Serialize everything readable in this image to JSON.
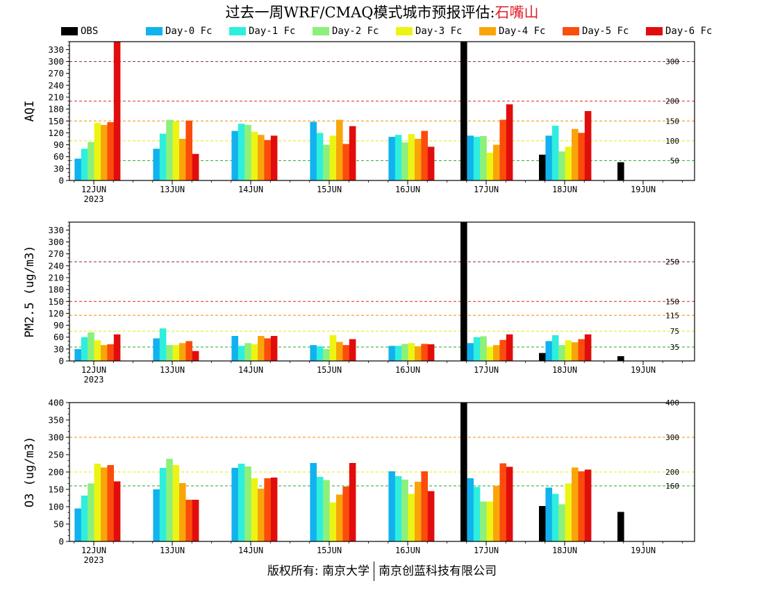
{
  "header": {
    "title": "过去一周WRF/CMAQ模式城市预报评估:",
    "station": "石嘴山"
  },
  "legend": [
    {
      "label": "OBS",
      "color": "#000000"
    },
    {
      "label": "Day-0 Fc",
      "color": "#11b2ee"
    },
    {
      "label": "Day-1 Fc",
      "color": "#2eeede"
    },
    {
      "label": "Day-2 Fc",
      "color": "#8cf07a"
    },
    {
      "label": "Day-3 Fc",
      "color": "#ecf414"
    },
    {
      "label": "Day-4 Fc",
      "color": "#f9a50a"
    },
    {
      "label": "Day-5 Fc",
      "color": "#fb4c0c"
    },
    {
      "label": "Day-6 Fc",
      "color": "#e10d0d"
    }
  ],
  "footer": {
    "left": "版权所有: 南京大学",
    "right": "南京创蓝科技有限公司"
  },
  "chart_data": [
    {
      "type": "bar",
      "ylabel": "AQI",
      "categories": [
        "12JUN",
        "13JUN",
        "14JUN",
        "15JUN",
        "16JUN",
        "17JUN",
        "18JUN",
        "19JUN"
      ],
      "first_category_sublabel": "2023",
      "ylim": [
        0,
        350
      ],
      "yticks": [
        0,
        30,
        60,
        90,
        120,
        150,
        180,
        210,
        240,
        270,
        300,
        330
      ],
      "thresholds": [
        {
          "value": 50,
          "label": "50",
          "color": "#22aa22"
        },
        {
          "value": 100,
          "label": "100",
          "color": "#e8e800"
        },
        {
          "value": 150,
          "label": "150",
          "color": "#f08c00"
        },
        {
          "value": 200,
          "label": "200",
          "color": "#dd2222"
        },
        {
          "value": 300,
          "label": "300",
          "color": "#882255"
        }
      ],
      "series": [
        {
          "name": "OBS",
          "values": [
            null,
            null,
            null,
            null,
            null,
            350,
            65,
            46
          ]
        },
        {
          "name": "Day-0 Fc",
          "values": [
            55,
            80,
            125,
            148,
            110,
            113,
            113,
            null
          ]
        },
        {
          "name": "Day-1 Fc",
          "values": [
            80,
            118,
            143,
            120,
            115,
            110,
            138,
            null
          ]
        },
        {
          "name": "Day-2 Fc",
          "values": [
            97,
            153,
            140,
            90,
            96,
            112,
            73,
            null
          ]
        },
        {
          "name": "Day-3 Fc",
          "values": [
            145,
            149,
            123,
            113,
            117,
            70,
            85,
            null
          ]
        },
        {
          "name": "Day-4 Fc",
          "values": [
            140,
            105,
            115,
            153,
            105,
            90,
            130,
            null
          ]
        },
        {
          "name": "Day-5 Fc",
          "values": [
            147,
            151,
            102,
            92,
            125,
            153,
            120,
            null
          ]
        },
        {
          "name": "Day-6 Fc",
          "values": [
            350,
            67,
            113,
            137,
            85,
            192,
            175,
            null
          ]
        }
      ]
    },
    {
      "type": "bar",
      "ylabel": "PM2.5 (ug/m3)",
      "categories": [
        "12JUN",
        "13JUN",
        "14JUN",
        "15JUN",
        "16JUN",
        "17JUN",
        "18JUN",
        "19JUN"
      ],
      "first_category_sublabel": "2023",
      "ylim": [
        0,
        350
      ],
      "yticks": [
        0,
        30,
        60,
        90,
        120,
        150,
        180,
        210,
        240,
        270,
        300,
        330
      ],
      "thresholds": [
        {
          "value": 35,
          "label": "35",
          "color": "#22aa22"
        },
        {
          "value": 75,
          "label": "75",
          "color": "#e8e800"
        },
        {
          "value": 115,
          "label": "115",
          "color": "#f08c00"
        },
        {
          "value": 150,
          "label": "150",
          "color": "#dd2222"
        },
        {
          "value": 250,
          "label": "250",
          "color": "#882255"
        }
      ],
      "series": [
        {
          "name": "OBS",
          "values": [
            null,
            null,
            null,
            null,
            null,
            350,
            20,
            12
          ]
        },
        {
          "name": "Day-0 Fc",
          "values": [
            30,
            57,
            63,
            40,
            38,
            45,
            50,
            null
          ]
        },
        {
          "name": "Day-1 Fc",
          "values": [
            60,
            82,
            38,
            37,
            38,
            60,
            65,
            null
          ]
        },
        {
          "name": "Day-2 Fc",
          "values": [
            72,
            40,
            45,
            30,
            43,
            62,
            40,
            null
          ]
        },
        {
          "name": "Day-3 Fc",
          "values": [
            52,
            40,
            42,
            65,
            45,
            36,
            52,
            null
          ]
        },
        {
          "name": "Day-4 Fc",
          "values": [
            40,
            45,
            63,
            48,
            37,
            40,
            47,
            null
          ]
        },
        {
          "name": "Day-5 Fc",
          "values": [
            42,
            50,
            57,
            40,
            43,
            53,
            55,
            null
          ]
        },
        {
          "name": "Day-6 Fc",
          "values": [
            67,
            25,
            63,
            55,
            42,
            67,
            67,
            null
          ]
        }
      ]
    },
    {
      "type": "bar",
      "ylabel": "O3 (ug/m3)",
      "categories": [
        "12JUN",
        "13JUN",
        "14JUN",
        "15JUN",
        "16JUN",
        "17JUN",
        "18JUN",
        "19JUN"
      ],
      "first_category_sublabel": "2023",
      "ylim": [
        0,
        400
      ],
      "yticks": [
        0,
        50,
        100,
        150,
        200,
        250,
        300,
        350,
        400
      ],
      "thresholds": [
        {
          "value": 160,
          "label": "160",
          "color": "#22aa22"
        },
        {
          "value": 200,
          "label": "200",
          "color": "#e8e800"
        },
        {
          "value": 300,
          "label": "300",
          "color": "#f08c00"
        },
        {
          "value": 400,
          "label": "400",
          "color": "#dd2222"
        }
      ],
      "series": [
        {
          "name": "OBS",
          "values": [
            null,
            null,
            null,
            null,
            null,
            400,
            102,
            85
          ]
        },
        {
          "name": "Day-0 Fc",
          "values": [
            95,
            150,
            212,
            226,
            202,
            182,
            155,
            null
          ]
        },
        {
          "name": "Day-1 Fc",
          "values": [
            132,
            212,
            224,
            186,
            188,
            157,
            137,
            null
          ]
        },
        {
          "name": "Day-2 Fc",
          "values": [
            167,
            238,
            216,
            177,
            178,
            115,
            107,
            null
          ]
        },
        {
          "name": "Day-3 Fc",
          "values": [
            224,
            220,
            182,
            112,
            137,
            115,
            167,
            null
          ]
        },
        {
          "name": "Day-4 Fc",
          "values": [
            213,
            168,
            152,
            135,
            172,
            160,
            213,
            null
          ]
        },
        {
          "name": "Day-5 Fc",
          "values": [
            220,
            120,
            182,
            158,
            202,
            225,
            202,
            null
          ]
        },
        {
          "name": "Day-6 Fc",
          "values": [
            173,
            120,
            184,
            226,
            145,
            215,
            207,
            null
          ]
        }
      ]
    }
  ]
}
